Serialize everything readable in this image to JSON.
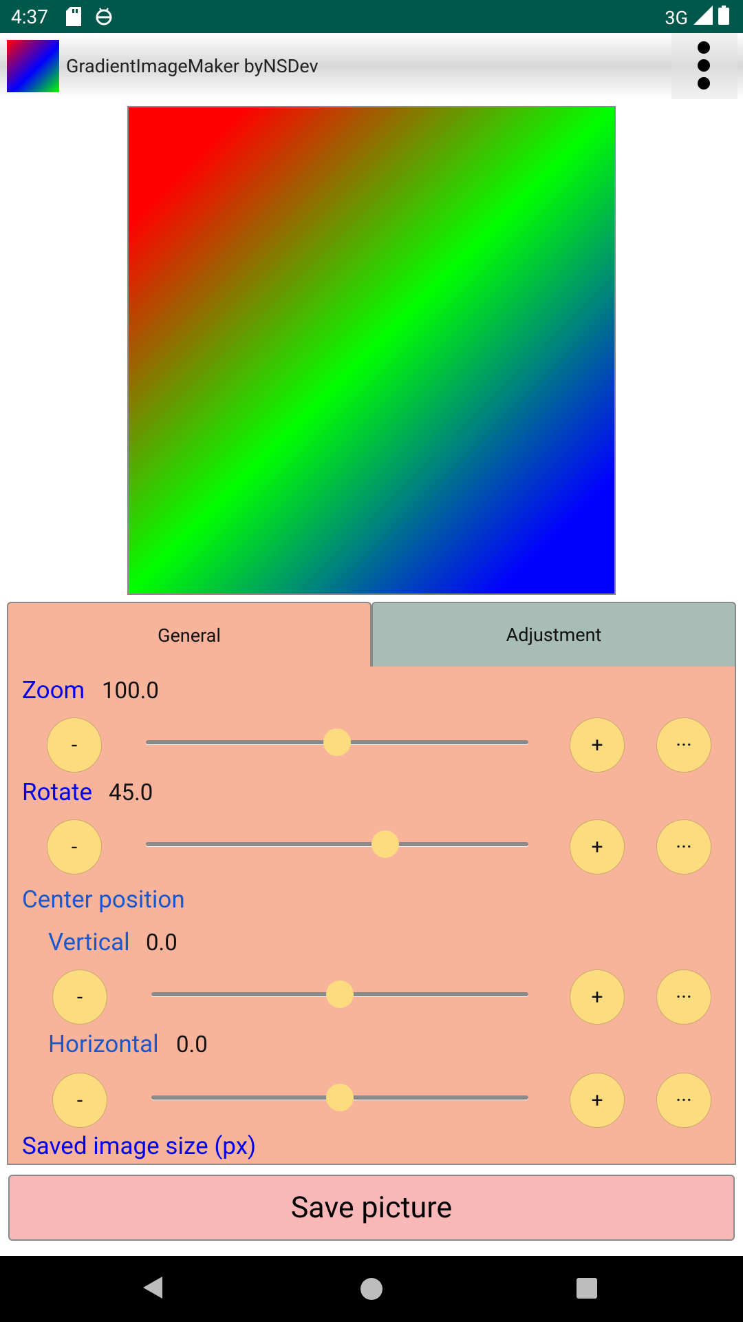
{
  "status": {
    "time": "4:37",
    "network": "3G",
    "icons": [
      "sd-card-icon",
      "android-debug-icon",
      "signal-icon",
      "battery-icon"
    ]
  },
  "appbar": {
    "title": "GradientImageMaker byNSDev",
    "menu_icon": "more-vert-icon"
  },
  "preview": {
    "colors": [
      "#ff0000",
      "#00ff00",
      "#0000ff"
    ],
    "angle_deg": 45
  },
  "tabs": [
    {
      "label": "General",
      "selected": true
    },
    {
      "label": "Adjustment",
      "selected": false
    }
  ],
  "general": {
    "zoom": {
      "label": "Zoom",
      "value": "100.0",
      "slider_fraction": 0.5
    },
    "rotate": {
      "label": "Rotate",
      "value": "45.0",
      "slider_fraction": 0.625
    },
    "center_position": {
      "label": "Center position"
    },
    "vertical": {
      "label": "Vertical",
      "value": "0.0",
      "slider_fraction": 0.5
    },
    "horizontal": {
      "label": "Horizontal",
      "value": "0.0",
      "slider_fraction": 0.5
    },
    "saved_size": {
      "label": "Saved image size (px)"
    },
    "minus_label": "-",
    "plus_label": "+",
    "more_label": "···"
  },
  "save_button": {
    "label": "Save picture"
  },
  "colors": {
    "panel_bg": "#f8b49a",
    "tab_inactive_bg": "#a8bdb6",
    "button_bg": "#fddc80",
    "save_bg": "#f9b8b8",
    "label_color": "#0000ee",
    "status_bar": "#00574b"
  }
}
